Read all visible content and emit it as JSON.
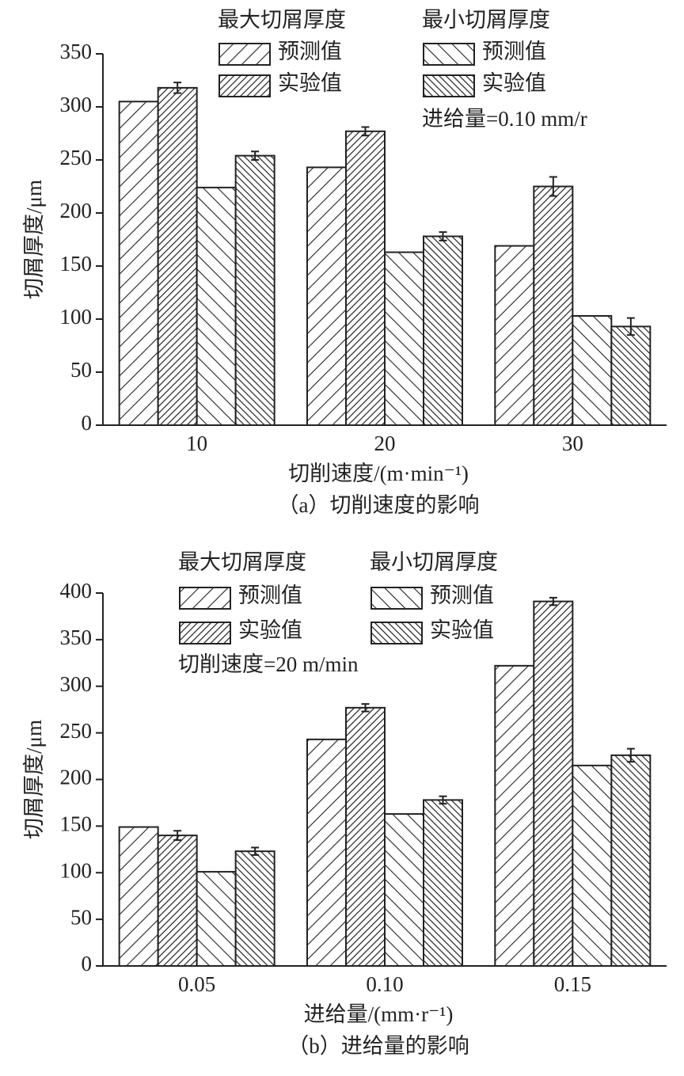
{
  "chart_data": [
    {
      "type": "bar",
      "categories": [
        "10",
        "20",
        "30"
      ],
      "series": [
        {
          "group": "最大切屑厚度",
          "name": "预测值",
          "hatch": "back-wide",
          "color": "#222",
          "values": [
            305,
            243,
            169
          ]
        },
        {
          "group": "最大切屑厚度",
          "name": "实验值",
          "hatch": "back-dense",
          "color": "#222",
          "values": [
            318,
            277,
            225
          ],
          "errors": [
            5,
            4,
            9
          ]
        },
        {
          "group": "最小切屑厚度",
          "name": "预测值",
          "hatch": "fwd-wide",
          "color": "#222",
          "values": [
            224,
            163,
            103
          ]
        },
        {
          "group": "最小切屑厚度",
          "name": "实验值",
          "hatch": "fwd-dense",
          "color": "#222",
          "values": [
            254,
            178,
            93
          ],
          "errors": [
            4,
            4,
            8
          ]
        }
      ],
      "annotation": "进给量=0.10 mm/r",
      "xlabel": "切削速度/(m·min⁻¹)",
      "ylabel": "切屑厚度/μm",
      "caption": "（a）切削速度的影响",
      "ylim": [
        0,
        350
      ],
      "yticks": [
        0,
        50,
        100,
        150,
        200,
        250,
        300,
        350
      ]
    },
    {
      "type": "bar",
      "categories": [
        "0.05",
        "0.10",
        "0.15"
      ],
      "series": [
        {
          "group": "最大切屑厚度",
          "name": "预测值",
          "hatch": "back-wide",
          "color": "#222",
          "values": [
            149,
            243,
            322
          ]
        },
        {
          "group": "最大切屑厚度",
          "name": "实验值",
          "hatch": "back-dense",
          "color": "#222",
          "values": [
            140,
            277,
            391
          ],
          "errors": [
            5,
            4,
            4
          ]
        },
        {
          "group": "最小切屑厚度",
          "name": "预测值",
          "hatch": "fwd-wide",
          "color": "#222",
          "values": [
            101,
            163,
            215
          ]
        },
        {
          "group": "最小切屑厚度",
          "name": "实验值",
          "hatch": "fwd-dense",
          "color": "#222",
          "values": [
            123,
            178,
            226
          ],
          "errors": [
            4,
            4,
            7
          ]
        }
      ],
      "annotation": "切削速度=20 m/min",
      "xlabel": "进给量/(mm·r⁻¹)",
      "ylabel": "切屑厚度/μm",
      "caption": "（b）进给量的影响",
      "ylim": [
        0,
        400
      ],
      "yticks": [
        0,
        50,
        100,
        150,
        200,
        250,
        300,
        350,
        400
      ]
    }
  ]
}
